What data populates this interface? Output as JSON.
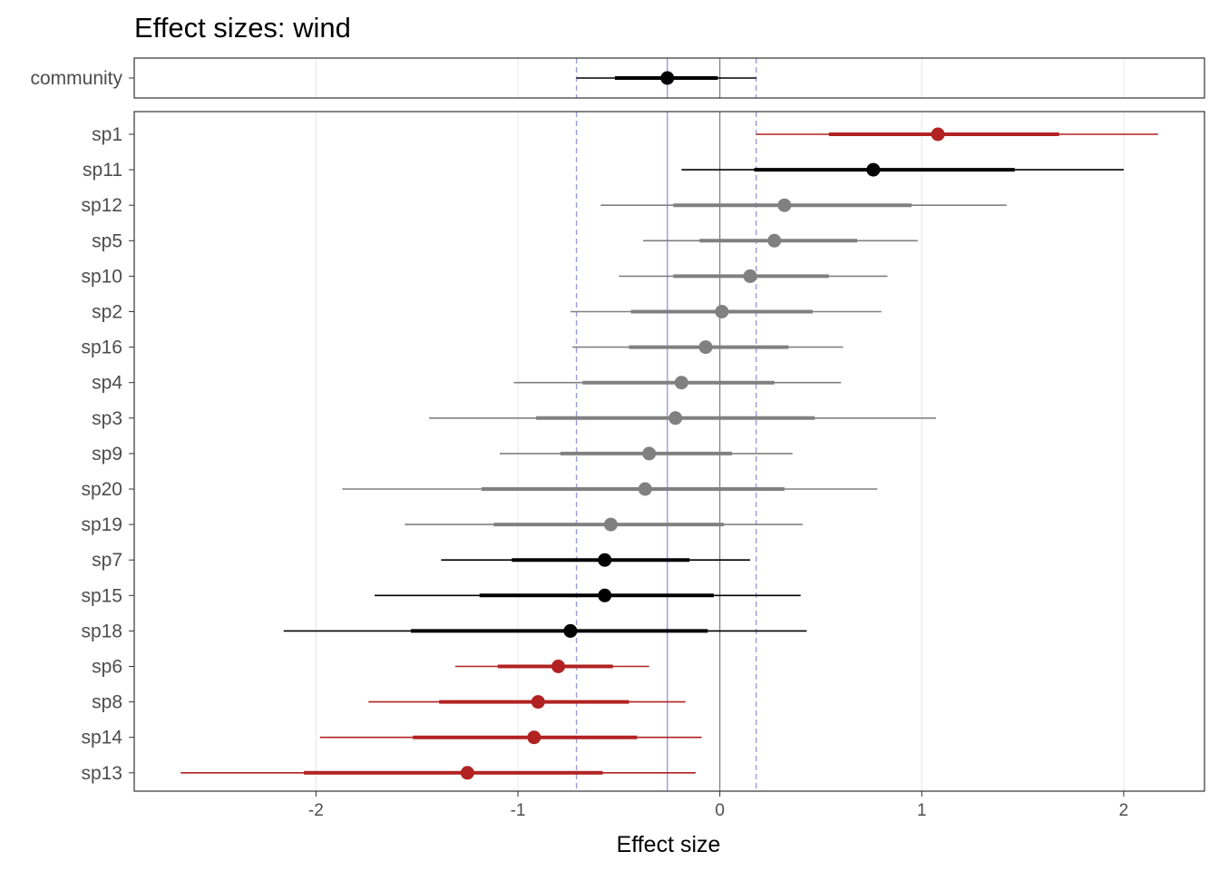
{
  "chart_data": {
    "type": "forest",
    "title": "Effect sizes: wind",
    "xlabel": "Effect size",
    "ylabel": "",
    "xlim": [
      -2.9,
      2.4
    ],
    "x_ticks": [
      -2,
      -1,
      0,
      1,
      2
    ],
    "x_tick_labels": [
      "-2",
      "-1",
      "0",
      "1",
      "2"
    ],
    "grid": true,
    "colors": {
      "positive": "#b22222",
      "negative": "#b22222",
      "neutral": "#808080",
      "highlight": "#000000",
      "reference": "#9b9bdc",
      "zero_line": "#7f7f7f",
      "grid": "#ebebeb"
    },
    "community": {
      "label": "community",
      "estimate": -0.26,
      "inner": [
        -0.52,
        -0.01
      ],
      "outer": [
        -0.71,
        0.18
      ],
      "color": "#000000"
    },
    "reference_lines": {
      "mean": -0.26,
      "lower": -0.71,
      "upper": 0.18
    },
    "species": [
      {
        "label": "sp1",
        "estimate": 1.08,
        "inner": [
          0.54,
          1.68
        ],
        "outer": [
          0.18,
          2.17
        ],
        "color": "#b22222"
      },
      {
        "label": "sp11",
        "estimate": 0.76,
        "inner": [
          0.17,
          1.46
        ],
        "outer": [
          -0.19,
          2.0
        ],
        "color": "#000000"
      },
      {
        "label": "sp12",
        "estimate": 0.32,
        "inner": [
          -0.23,
          0.95
        ],
        "outer": [
          -0.59,
          1.42
        ],
        "color": "#808080"
      },
      {
        "label": "sp5",
        "estimate": 0.27,
        "inner": [
          -0.1,
          0.68
        ],
        "outer": [
          -0.38,
          0.98
        ],
        "color": "#808080"
      },
      {
        "label": "sp10",
        "estimate": 0.15,
        "inner": [
          -0.23,
          0.54
        ],
        "outer": [
          -0.5,
          0.83
        ],
        "color": "#808080"
      },
      {
        "label": "sp2",
        "estimate": 0.01,
        "inner": [
          -0.44,
          0.46
        ],
        "outer": [
          -0.74,
          0.8
        ],
        "color": "#808080"
      },
      {
        "label": "sp16",
        "estimate": -0.07,
        "inner": [
          -0.45,
          0.34
        ],
        "outer": [
          -0.73,
          0.61
        ],
        "color": "#808080"
      },
      {
        "label": "sp4",
        "estimate": -0.19,
        "inner": [
          -0.68,
          0.27
        ],
        "outer": [
          -1.02,
          0.6
        ],
        "color": "#808080"
      },
      {
        "label": "sp3",
        "estimate": -0.22,
        "inner": [
          -0.91,
          0.47
        ],
        "outer": [
          -1.44,
          1.07
        ],
        "color": "#808080"
      },
      {
        "label": "sp9",
        "estimate": -0.35,
        "inner": [
          -0.79,
          0.06
        ],
        "outer": [
          -1.09,
          0.36
        ],
        "color": "#808080"
      },
      {
        "label": "sp20",
        "estimate": -0.37,
        "inner": [
          -1.18,
          0.32
        ],
        "outer": [
          -1.87,
          0.78
        ],
        "color": "#808080"
      },
      {
        "label": "sp19",
        "estimate": -0.54,
        "inner": [
          -1.12,
          0.02
        ],
        "outer": [
          -1.56,
          0.41
        ],
        "color": "#808080"
      },
      {
        "label": "sp7",
        "estimate": -0.57,
        "inner": [
          -1.03,
          -0.15
        ],
        "outer": [
          -1.38,
          0.15
        ],
        "color": "#000000"
      },
      {
        "label": "sp15",
        "estimate": -0.57,
        "inner": [
          -1.19,
          -0.03
        ],
        "outer": [
          -1.71,
          0.4
        ],
        "color": "#000000"
      },
      {
        "label": "sp18",
        "estimate": -0.74,
        "inner": [
          -1.53,
          -0.06
        ],
        "outer": [
          -2.16,
          0.43
        ],
        "color": "#000000"
      },
      {
        "label": "sp6",
        "estimate": -0.8,
        "inner": [
          -1.1,
          -0.53
        ],
        "outer": [
          -1.31,
          -0.35
        ],
        "color": "#b22222"
      },
      {
        "label": "sp8",
        "estimate": -0.9,
        "inner": [
          -1.39,
          -0.45
        ],
        "outer": [
          -1.74,
          -0.17
        ],
        "color": "#b22222"
      },
      {
        "label": "sp14",
        "estimate": -0.92,
        "inner": [
          -1.52,
          -0.41
        ],
        "outer": [
          -1.98,
          -0.09
        ],
        "color": "#b22222"
      },
      {
        "label": "sp13",
        "estimate": -1.25,
        "inner": [
          -2.06,
          -0.58
        ],
        "outer": [
          -2.67,
          -0.12
        ],
        "color": "#b22222"
      }
    ]
  }
}
